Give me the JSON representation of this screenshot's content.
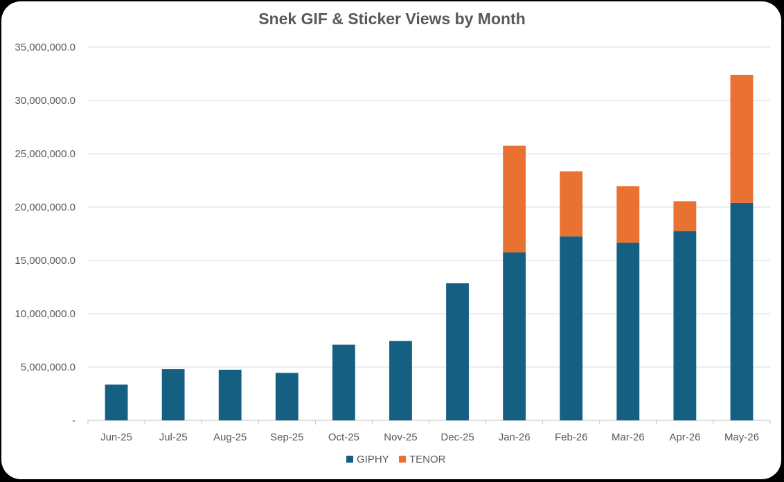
{
  "chart_data": {
    "type": "bar",
    "stacked": true,
    "title": "Snek GIF & Sticker Views by Month",
    "xlabel": "",
    "ylabel": "",
    "ylim": [
      0,
      35000000
    ],
    "y_ticks": [
      "-",
      "5,000,000.0",
      "10,000,000.0",
      "15,000,000.0",
      "20,000,000.0",
      "25,000,000.0",
      "30,000,000.0",
      "35,000,000.0"
    ],
    "y_tick_values": [
      0,
      5000000,
      10000000,
      15000000,
      20000000,
      25000000,
      30000000,
      35000000
    ],
    "grid": true,
    "legend_position": "bottom",
    "categories": [
      "Jun-25",
      "Jul-25",
      "Aug-25",
      "Sep-25",
      "Oct-25",
      "Nov-25",
      "Dec-25",
      "Jan-26",
      "Feb-26",
      "Mar-26",
      "Apr-26",
      "May-26"
    ],
    "series": [
      {
        "name": "GIPHY",
        "color": "#156082",
        "values": [
          3350000,
          4800000,
          4750000,
          4450000,
          7100000,
          7450000,
          12850000,
          15750000,
          17250000,
          16650000,
          17750000,
          20400000
        ]
      },
      {
        "name": "TENOR",
        "color": "#E97132",
        "values": [
          0,
          0,
          0,
          0,
          0,
          0,
          0,
          10000000,
          6100000,
          5300000,
          2800000,
          12000000
        ]
      }
    ]
  }
}
